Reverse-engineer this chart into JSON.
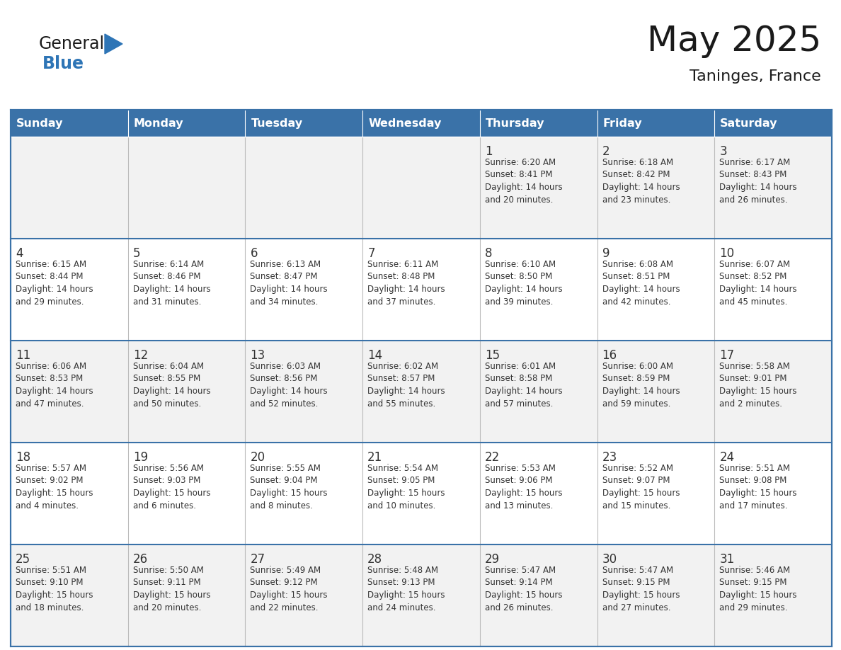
{
  "title": "May 2025",
  "subtitle": "Taninges, France",
  "days_of_week": [
    "Sunday",
    "Monday",
    "Tuesday",
    "Wednesday",
    "Thursday",
    "Friday",
    "Saturday"
  ],
  "header_bg": "#3A72A8",
  "header_text_color": "#FFFFFF",
  "row_bg": [
    "#F2F2F2",
    "#FFFFFF",
    "#F2F2F2",
    "#FFFFFF",
    "#F2F2F2"
  ],
  "cell_text_color": "#333333",
  "grid_color": "#BBBBBB",
  "week_separator_color": "#3A72A8",
  "title_color": "#1a1a1a",
  "subtitle_color": "#1a1a1a",
  "logo_general_color": "#1a1a1a",
  "logo_blue_color": "#2E75B6",
  "logo_triangle_color": "#2E75B6",
  "calendar_data": [
    [
      {
        "day": null,
        "info": null
      },
      {
        "day": null,
        "info": null
      },
      {
        "day": null,
        "info": null
      },
      {
        "day": null,
        "info": null
      },
      {
        "day": 1,
        "info": "Sunrise: 6:20 AM\nSunset: 8:41 PM\nDaylight: 14 hours\nand 20 minutes."
      },
      {
        "day": 2,
        "info": "Sunrise: 6:18 AM\nSunset: 8:42 PM\nDaylight: 14 hours\nand 23 minutes."
      },
      {
        "day": 3,
        "info": "Sunrise: 6:17 AM\nSunset: 8:43 PM\nDaylight: 14 hours\nand 26 minutes."
      }
    ],
    [
      {
        "day": 4,
        "info": "Sunrise: 6:15 AM\nSunset: 8:44 PM\nDaylight: 14 hours\nand 29 minutes."
      },
      {
        "day": 5,
        "info": "Sunrise: 6:14 AM\nSunset: 8:46 PM\nDaylight: 14 hours\nand 31 minutes."
      },
      {
        "day": 6,
        "info": "Sunrise: 6:13 AM\nSunset: 8:47 PM\nDaylight: 14 hours\nand 34 minutes."
      },
      {
        "day": 7,
        "info": "Sunrise: 6:11 AM\nSunset: 8:48 PM\nDaylight: 14 hours\nand 37 minutes."
      },
      {
        "day": 8,
        "info": "Sunrise: 6:10 AM\nSunset: 8:50 PM\nDaylight: 14 hours\nand 39 minutes."
      },
      {
        "day": 9,
        "info": "Sunrise: 6:08 AM\nSunset: 8:51 PM\nDaylight: 14 hours\nand 42 minutes."
      },
      {
        "day": 10,
        "info": "Sunrise: 6:07 AM\nSunset: 8:52 PM\nDaylight: 14 hours\nand 45 minutes."
      }
    ],
    [
      {
        "day": 11,
        "info": "Sunrise: 6:06 AM\nSunset: 8:53 PM\nDaylight: 14 hours\nand 47 minutes."
      },
      {
        "day": 12,
        "info": "Sunrise: 6:04 AM\nSunset: 8:55 PM\nDaylight: 14 hours\nand 50 minutes."
      },
      {
        "day": 13,
        "info": "Sunrise: 6:03 AM\nSunset: 8:56 PM\nDaylight: 14 hours\nand 52 minutes."
      },
      {
        "day": 14,
        "info": "Sunrise: 6:02 AM\nSunset: 8:57 PM\nDaylight: 14 hours\nand 55 minutes."
      },
      {
        "day": 15,
        "info": "Sunrise: 6:01 AM\nSunset: 8:58 PM\nDaylight: 14 hours\nand 57 minutes."
      },
      {
        "day": 16,
        "info": "Sunrise: 6:00 AM\nSunset: 8:59 PM\nDaylight: 14 hours\nand 59 minutes."
      },
      {
        "day": 17,
        "info": "Sunrise: 5:58 AM\nSunset: 9:01 PM\nDaylight: 15 hours\nand 2 minutes."
      }
    ],
    [
      {
        "day": 18,
        "info": "Sunrise: 5:57 AM\nSunset: 9:02 PM\nDaylight: 15 hours\nand 4 minutes."
      },
      {
        "day": 19,
        "info": "Sunrise: 5:56 AM\nSunset: 9:03 PM\nDaylight: 15 hours\nand 6 minutes."
      },
      {
        "day": 20,
        "info": "Sunrise: 5:55 AM\nSunset: 9:04 PM\nDaylight: 15 hours\nand 8 minutes."
      },
      {
        "day": 21,
        "info": "Sunrise: 5:54 AM\nSunset: 9:05 PM\nDaylight: 15 hours\nand 10 minutes."
      },
      {
        "day": 22,
        "info": "Sunrise: 5:53 AM\nSunset: 9:06 PM\nDaylight: 15 hours\nand 13 minutes."
      },
      {
        "day": 23,
        "info": "Sunrise: 5:52 AM\nSunset: 9:07 PM\nDaylight: 15 hours\nand 15 minutes."
      },
      {
        "day": 24,
        "info": "Sunrise: 5:51 AM\nSunset: 9:08 PM\nDaylight: 15 hours\nand 17 minutes."
      }
    ],
    [
      {
        "day": 25,
        "info": "Sunrise: 5:51 AM\nSunset: 9:10 PM\nDaylight: 15 hours\nand 18 minutes."
      },
      {
        "day": 26,
        "info": "Sunrise: 5:50 AM\nSunset: 9:11 PM\nDaylight: 15 hours\nand 20 minutes."
      },
      {
        "day": 27,
        "info": "Sunrise: 5:49 AM\nSunset: 9:12 PM\nDaylight: 15 hours\nand 22 minutes."
      },
      {
        "day": 28,
        "info": "Sunrise: 5:48 AM\nSunset: 9:13 PM\nDaylight: 15 hours\nand 24 minutes."
      },
      {
        "day": 29,
        "info": "Sunrise: 5:47 AM\nSunset: 9:14 PM\nDaylight: 15 hours\nand 26 minutes."
      },
      {
        "day": 30,
        "info": "Sunrise: 5:47 AM\nSunset: 9:15 PM\nDaylight: 15 hours\nand 27 minutes."
      },
      {
        "day": 31,
        "info": "Sunrise: 5:46 AM\nSunset: 9:15 PM\nDaylight: 15 hours\nand 29 minutes."
      }
    ]
  ]
}
